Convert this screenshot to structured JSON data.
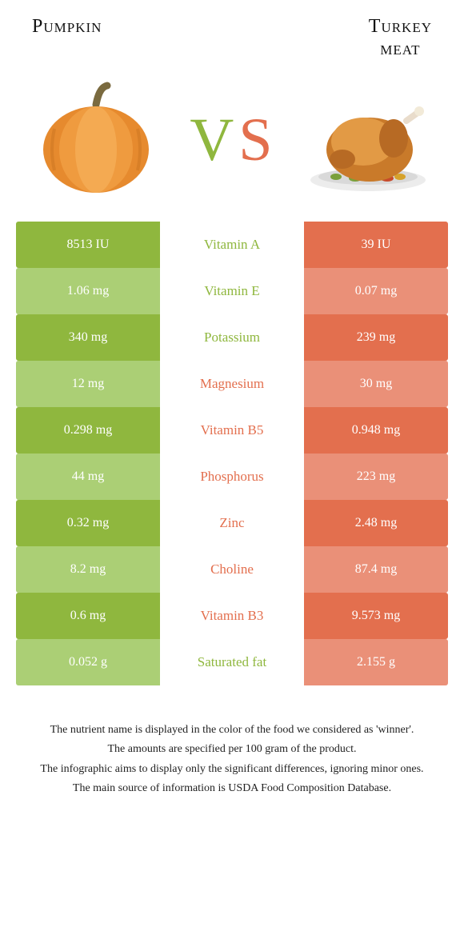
{
  "left": {
    "title": "Pumpkin",
    "color": "#8fb73e",
    "altColor": "#abcf75"
  },
  "right": {
    "title": "Turkey\nmeat",
    "color": "#e36f4e",
    "altColor": "#ea9078"
  },
  "vs": {
    "v": "V",
    "s": "S"
  },
  "table": {
    "rows": [
      {
        "nutrient": "Vitamin A",
        "left": "8513 IU",
        "right": "39 IU",
        "winner": "left"
      },
      {
        "nutrient": "Vitamin E",
        "left": "1.06 mg",
        "right": "0.07 mg",
        "winner": "left"
      },
      {
        "nutrient": "Potassium",
        "left": "340 mg",
        "right": "239 mg",
        "winner": "left"
      },
      {
        "nutrient": "Magnesium",
        "left": "12 mg",
        "right": "30 mg",
        "winner": "right"
      },
      {
        "nutrient": "Vitamin B5",
        "left": "0.298 mg",
        "right": "0.948 mg",
        "winner": "right"
      },
      {
        "nutrient": "Phosphorus",
        "left": "44 mg",
        "right": "223 mg",
        "winner": "right"
      },
      {
        "nutrient": "Zinc",
        "left": "0.32 mg",
        "right": "2.48 mg",
        "winner": "right"
      },
      {
        "nutrient": "Choline",
        "left": "8.2 mg",
        "right": "87.4 mg",
        "winner": "right"
      },
      {
        "nutrient": "Vitamin B3",
        "left": "0.6 mg",
        "right": "9.573 mg",
        "winner": "right"
      },
      {
        "nutrient": "Saturated fat",
        "left": "0.052 g",
        "right": "2.155 g",
        "winner": "left"
      }
    ]
  },
  "footnotes": [
    "The nutrient name is displayed in the color of the food we considered as 'winner'.",
    "The amounts are specified per 100 gram of the product.",
    "The infographic aims to display only the significant differences, ignoring minor ones.",
    "The main source of information is USDA Food Composition Database."
  ]
}
